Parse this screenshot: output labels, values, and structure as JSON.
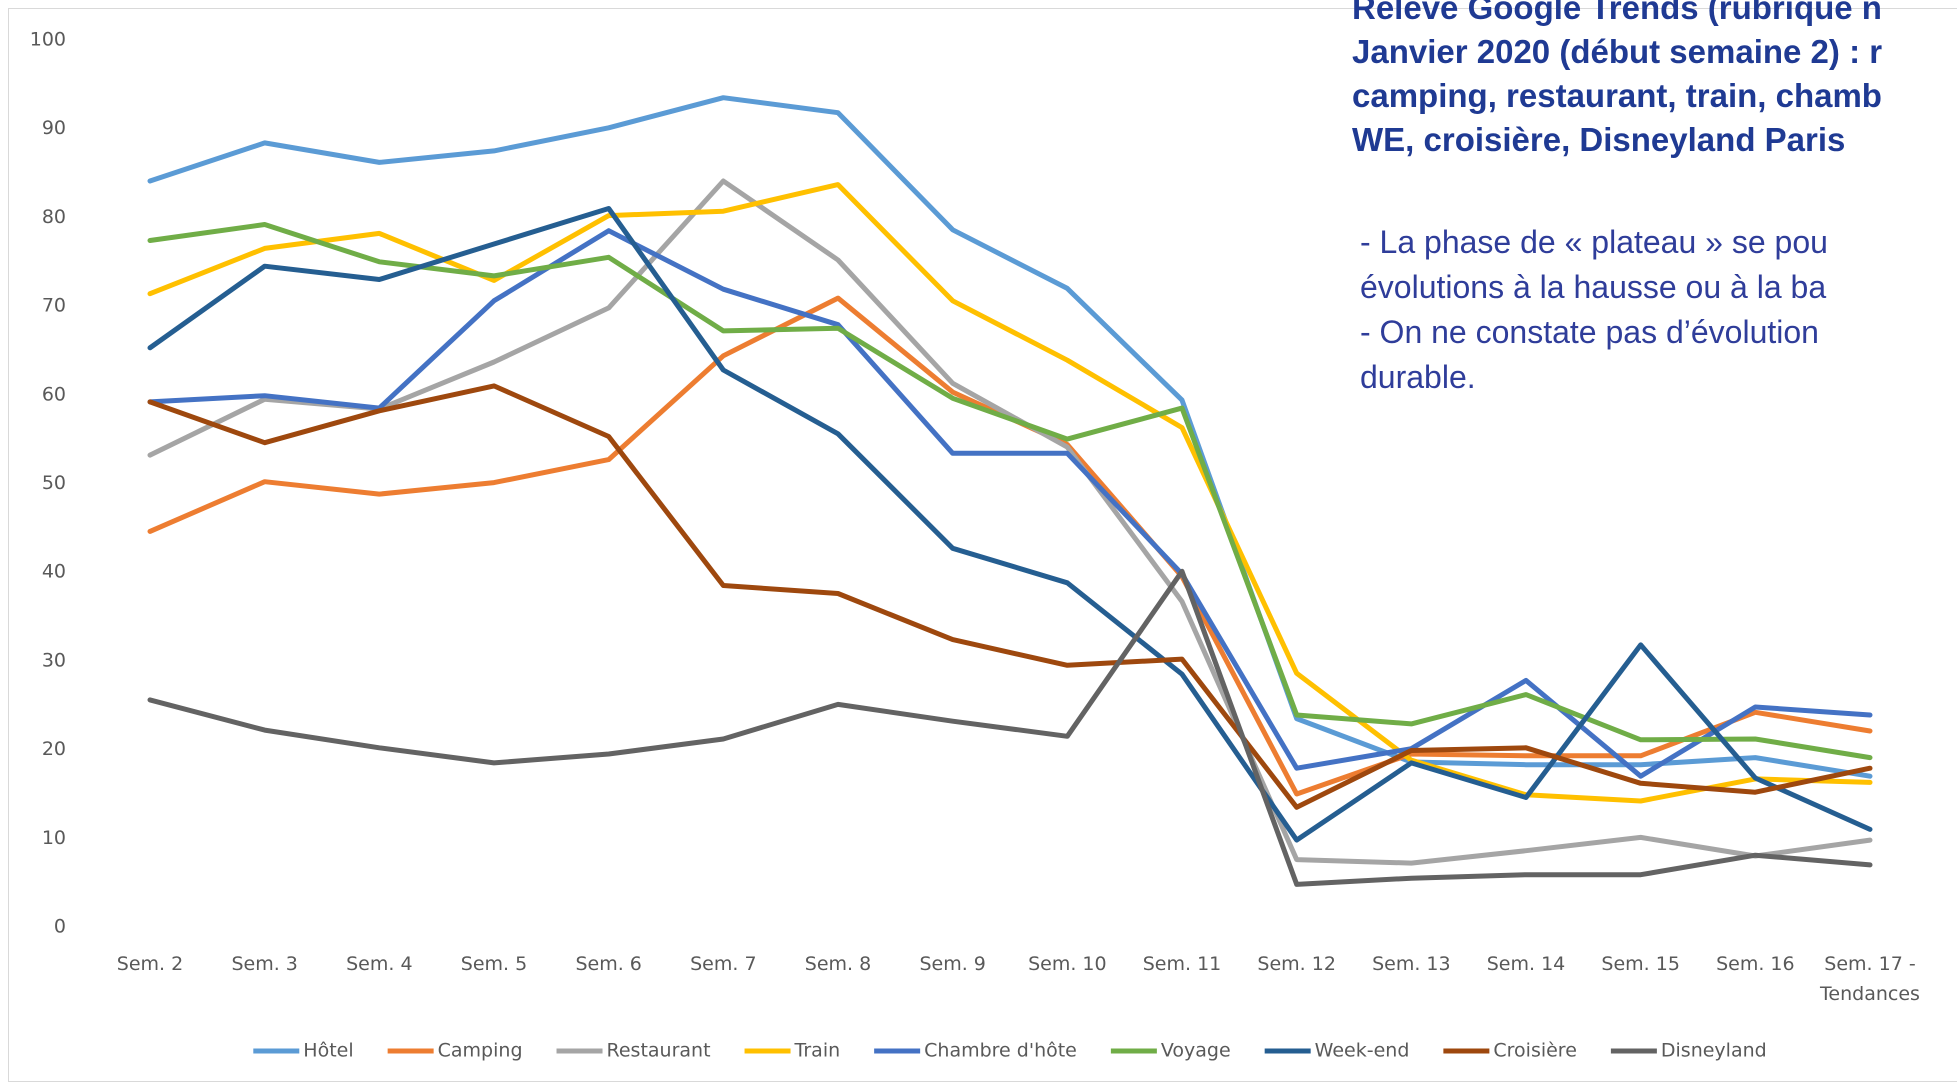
{
  "chart_data": {
    "type": "line",
    "categories": [
      "Sem. 2",
      "Sem. 3",
      "Sem. 4",
      "Sem. 5",
      "Sem. 6",
      "Sem. 7",
      "Sem. 8",
      "Sem. 9",
      "Sem. 10",
      "Sem. 11",
      "Sem. 12",
      "Sem. 13",
      "Sem. 14",
      "Sem. 15",
      "Sem. 16",
      "Sem. 17 - Tendances"
    ],
    "series": [
      {
        "name": "Hôtel",
        "color": "#5b9bd5",
        "values": [
          84.1,
          88.4,
          86.2,
          87.5,
          90.1,
          93.5,
          91.8,
          78.6,
          72.0,
          59.4,
          23.5,
          18.6,
          18.3,
          18.3,
          19.1,
          17.0
        ]
      },
      {
        "name": "Camping",
        "color": "#ed7d31",
        "values": [
          44.6,
          50.2,
          48.8,
          50.1,
          52.7,
          64.4,
          70.9,
          60.3,
          54.4,
          39.5,
          15.0,
          19.5,
          19.3,
          19.3,
          24.2,
          22.1
        ]
      },
      {
        "name": "Restaurant",
        "color": "#a5a5a5",
        "values": [
          53.2,
          59.5,
          58.4,
          63.7,
          69.8,
          84.1,
          75.2,
          61.3,
          54.1,
          36.7,
          7.6,
          7.2,
          8.6,
          10.1,
          8.0,
          9.8
        ]
      },
      {
        "name": "Train",
        "color": "#ffc000",
        "values": [
          71.4,
          76.5,
          78.2,
          72.9,
          80.2,
          80.7,
          83.7,
          70.6,
          63.9,
          56.3,
          28.6,
          18.8,
          14.9,
          14.2,
          16.7,
          16.3
        ]
      },
      {
        "name": "Chambre d'hôte",
        "color": "#4472c4",
        "values": [
          59.2,
          59.9,
          58.5,
          70.6,
          78.5,
          71.9,
          67.9,
          53.4,
          53.4,
          39.8,
          17.9,
          20.1,
          27.8,
          17.0,
          24.8,
          23.9
        ]
      },
      {
        "name": "Voyage",
        "color": "#70ad47",
        "values": [
          77.4,
          79.2,
          75.0,
          73.4,
          75.5,
          67.2,
          67.5,
          59.6,
          55.0,
          58.5,
          23.9,
          22.9,
          26.2,
          21.1,
          21.2,
          19.1
        ]
      },
      {
        "name": "Week-end",
        "color": "#255e91",
        "values": [
          65.3,
          74.5,
          73.0,
          77.0,
          81.0,
          62.8,
          55.6,
          42.7,
          38.8,
          28.5,
          9.8,
          18.5,
          14.6,
          31.8,
          16.8,
          11.0
        ]
      },
      {
        "name": "Croisière",
        "color": "#9e480e",
        "values": [
          59.2,
          54.6,
          58.2,
          61.0,
          55.3,
          38.5,
          37.6,
          32.4,
          29.5,
          30.2,
          13.5,
          19.9,
          20.2,
          16.2,
          15.2,
          17.9
        ]
      },
      {
        "name": "Disneyland",
        "color": "#636363",
        "values": [
          25.6,
          22.2,
          20.2,
          18.5,
          19.5,
          21.2,
          25.1,
          23.2,
          21.5,
          40.1,
          4.8,
          5.5,
          5.9,
          5.9,
          8.1,
          7.0
        ]
      }
    ],
    "ylim": [
      0,
      100
    ],
    "yticks": [
      0,
      10,
      20,
      30,
      40,
      50,
      60,
      70,
      80,
      90,
      100
    ],
    "grid": false,
    "legend": "bottom"
  },
  "annotations": {
    "heading": [
      "Relevé Google Trends (rubrique n",
      "Janvier 2020 (début semaine 2) : r",
      "camping, restaurant, train, chamb",
      "WE, croisière, Disneyland Paris"
    ],
    "notes": [
      "- La phase de « plateau » se pou",
      "évolutions à la hausse ou à la ba",
      "- On ne constate pas d’évolution",
      "durable."
    ]
  }
}
